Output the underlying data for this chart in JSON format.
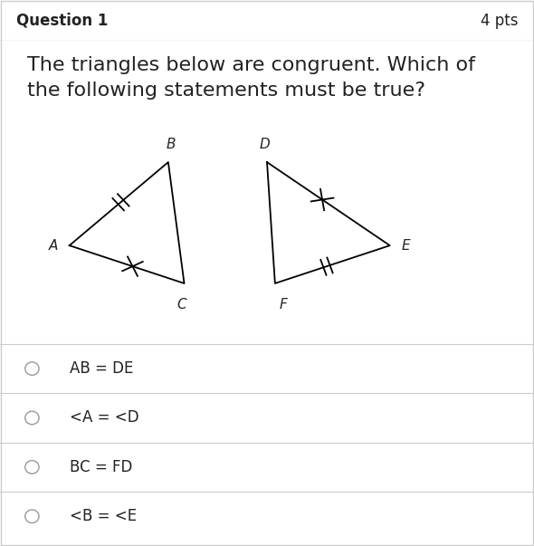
{
  "title_box_text": "Question 1",
  "pts_text": "4 pts",
  "question_text": "The triangles below are congruent. Which of\nthe following statements must be true?",
  "header_bg": "#f0f0f0",
  "body_bg": "#ffffff",
  "border_color": "#cccccc",
  "text_color": "#222222",
  "triangle1": {
    "A": [
      0.13,
      0.595
    ],
    "B": [
      0.315,
      0.76
    ],
    "C": [
      0.345,
      0.52
    ]
  },
  "triangle2": {
    "D": [
      0.5,
      0.76
    ],
    "E": [
      0.73,
      0.595
    ],
    "F": [
      0.515,
      0.52
    ]
  },
  "choices": [
    "AB = DE",
    "<A = <D",
    "BC = FD",
    "<B = <E"
  ],
  "choice_fontsize": 12,
  "title_fontsize": 12,
  "question_fontsize": 16,
  "pts_fontsize": 12
}
